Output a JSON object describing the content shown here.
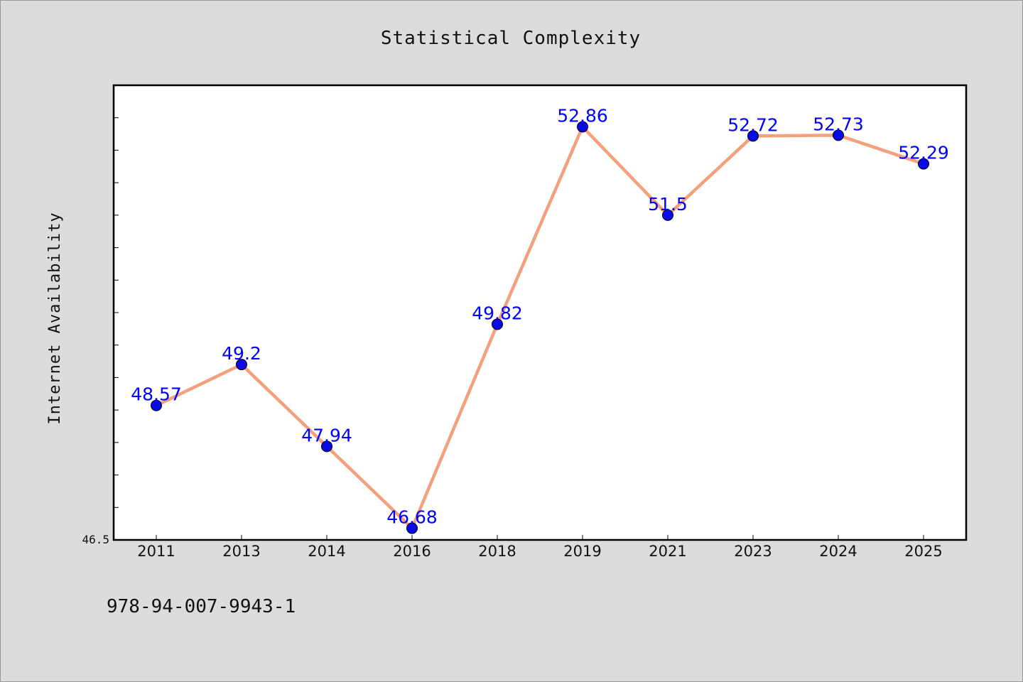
{
  "chart_data": {
    "type": "line",
    "title": "Statistical Complexity",
    "xlabel": "",
    "ylabel": "Internet Availability",
    "categories": [
      "2011",
      "2013",
      "2014",
      "2016",
      "2018",
      "2019",
      "2021",
      "2023",
      "2024",
      "2025"
    ],
    "series": [
      {
        "values": [
          48.57,
          49.2,
          47.94,
          46.68,
          49.82,
          52.86,
          51.5,
          52.72,
          52.73,
          52.29
        ],
        "data_labels": [
          "48.57",
          "49.2",
          "47.94",
          "46.68",
          "49.82",
          "52.86",
          "51.5",
          "52.72",
          "52.73",
          "52.29"
        ]
      }
    ],
    "ylim": [
      46.5,
      53.5
    ],
    "y_tick_labels": [
      "46.5"
    ],
    "colors": {
      "line": "#f4a07c",
      "marker": "#0a0ae6",
      "data_label": "#0000ff",
      "plot_bg": "#ffffff",
      "page_bg": "#dcdcdc"
    },
    "grid": false,
    "legend": "none"
  },
  "footer": {
    "id_text": "978-94-007-9943-1"
  }
}
